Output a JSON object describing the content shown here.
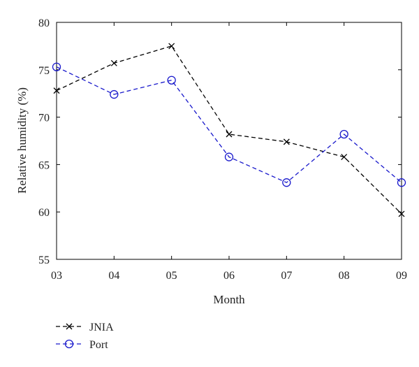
{
  "chart_data": {
    "type": "line",
    "title": "",
    "xlabel": "Month",
    "ylabel": "Relative humidity (%)",
    "categories": [
      "03",
      "04",
      "05",
      "06",
      "07",
      "08",
      "09"
    ],
    "ylim": [
      55,
      80
    ],
    "yticks": [
      "55",
      "60",
      "65",
      "70",
      "75",
      "80"
    ],
    "grid": false,
    "legend_position": "bottom-left, below plot",
    "series": [
      {
        "name": "JNIA",
        "values": [
          72.8,
          75.7,
          77.5,
          68.2,
          67.4,
          65.8,
          59.8
        ],
        "color": "#000000",
        "line_style": "dashed",
        "marker": "x"
      },
      {
        "name": "Port",
        "values": [
          75.3,
          72.4,
          73.9,
          65.8,
          63.1,
          68.2,
          63.1
        ],
        "color": "#1a1acc",
        "line_style": "dashed",
        "marker": "circle"
      }
    ]
  }
}
